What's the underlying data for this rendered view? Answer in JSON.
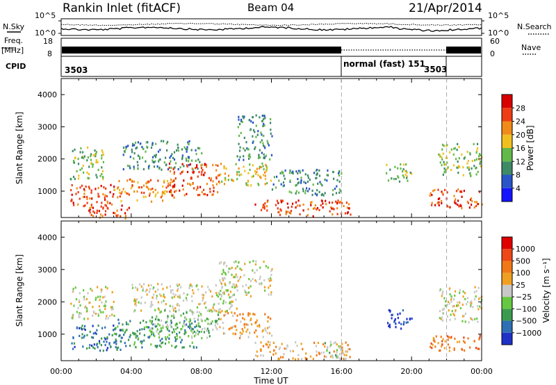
{
  "header": {
    "station": "Rankin Inlet (fitACF)",
    "beam": "Beam 04",
    "date": "21/Apr/2014"
  },
  "status_panels": {
    "nsky_label": "N.Sky",
    "nsearch_label": "N.Search",
    "noise_ticks": [
      "10^5",
      "10^0"
    ],
    "freq_label": "Freq.",
    "freq_unit": "[MHz]",
    "freq_ticks": [
      "18",
      "8"
    ],
    "nave_label": "Nave",
    "nave_ticks": [
      "60",
      "0"
    ],
    "cpid_label": "CPID",
    "cpid_segments": [
      {
        "start_h": 0,
        "end_h": 16,
        "label": "3503"
      },
      {
        "start_h": 16,
        "end_h": 22,
        "label": "normal (fast) 151"
      },
      {
        "start_h": 22,
        "end_h": 24,
        "label": "3503"
      }
    ]
  },
  "chart_data": [
    {
      "type": "heatmap",
      "title": "",
      "xlabel": "Time UT",
      "ylabel": "Slant Range [km]",
      "xlim_hours": [
        0,
        24
      ],
      "ylim_km": [
        180,
        4500
      ],
      "x_ticks": [
        "00:00",
        "04:00",
        "08:00",
        "12:00",
        "16:00",
        "20:00",
        "00:00"
      ],
      "y_ticks": [
        "1000",
        "2000",
        "3000",
        "4000"
      ],
      "colorbar": {
        "label": "Power [dB]",
        "ticks": [
          "4",
          "8",
          "12",
          "16",
          "20",
          "24",
          "28"
        ],
        "colors": [
          "#1414ff",
          "#2a55c8",
          "#3e8a66",
          "#62b84a",
          "#f0c020",
          "#f08a18",
          "#ee3c14",
          "#d80000"
        ]
      },
      "regions": [
        {
          "t0": 0.5,
          "t1": 3.0,
          "r0": 500,
          "r1": 1250,
          "level": 6
        },
        {
          "t0": 0.5,
          "t1": 2.5,
          "r0": 1400,
          "r1": 2400,
          "level": 3
        },
        {
          "t0": 1.5,
          "t1": 4.0,
          "r0": 180,
          "r1": 600,
          "level": 6
        },
        {
          "t0": 3.0,
          "t1": 6.5,
          "r0": 700,
          "r1": 1400,
          "level": 5
        },
        {
          "t0": 3.5,
          "t1": 8.0,
          "r0": 1700,
          "r1": 2600,
          "level": 2
        },
        {
          "t0": 6.0,
          "t1": 9.0,
          "r0": 900,
          "r1": 1900,
          "level": 6
        },
        {
          "t0": 9.0,
          "t1": 12.0,
          "r0": 1200,
          "r1": 1900,
          "level": 4
        },
        {
          "t0": 10.0,
          "t1": 12.0,
          "r0": 2000,
          "r1": 3400,
          "level": 2
        },
        {
          "t0": 11.0,
          "t1": 16.5,
          "r0": 250,
          "r1": 750,
          "level": 6
        },
        {
          "t0": 12.0,
          "t1": 16.0,
          "r0": 900,
          "r1": 1700,
          "level": 2
        },
        {
          "t0": 18.5,
          "t1": 20.0,
          "r0": 1300,
          "r1": 1900,
          "level": 3
        },
        {
          "t0": 21.0,
          "t1": 24.0,
          "r0": 500,
          "r1": 1100,
          "level": 6
        },
        {
          "t0": 21.5,
          "t1": 24.0,
          "r0": 1500,
          "r1": 2500,
          "level": 3
        }
      ]
    },
    {
      "type": "heatmap",
      "title": "",
      "xlabel": "Time UT",
      "ylabel": "Slant Range [km]",
      "xlim_hours": [
        0,
        24
      ],
      "ylim_km": [
        180,
        4500
      ],
      "x_ticks": [
        "00:00",
        "04:00",
        "08:00",
        "12:00",
        "16:00",
        "20:00",
        "00:00"
      ],
      "y_ticks": [
        "1000",
        "2000",
        "3000",
        "4000"
      ],
      "colorbar": {
        "label": "Velocity [m s⁻¹]",
        "ticks": [
          "1000",
          "500",
          "100",
          "25",
          "−25",
          "−100",
          "−500",
          "−1000"
        ],
        "colors": [
          "#1e32c8",
          "#2f6fb4",
          "#3c9a50",
          "#66c840",
          "#c8c8c8",
          "#f0a020",
          "#f07818",
          "#ec4818",
          "#e00000"
        ]
      },
      "regions": [
        {
          "t0": 0.5,
          "t1": 3.5,
          "r0": 500,
          "r1": 1300,
          "level": 1
        },
        {
          "t0": 0.5,
          "t1": 3.0,
          "r0": 1500,
          "r1": 2500,
          "level": 4
        },
        {
          "t0": 3.0,
          "t1": 8.0,
          "r0": 600,
          "r1": 1500,
          "level": 2
        },
        {
          "t0": 4.0,
          "t1": 10.0,
          "r0": 1700,
          "r1": 2600,
          "level": 4
        },
        {
          "t0": 5.0,
          "t1": 9.0,
          "r0": 900,
          "r1": 1800,
          "level": 3
        },
        {
          "t0": 9.0,
          "t1": 12.0,
          "r0": 2200,
          "r1": 3300,
          "level": 4
        },
        {
          "t0": 9.0,
          "t1": 12.0,
          "r0": 900,
          "r1": 1700,
          "level": 5
        },
        {
          "t0": 11.0,
          "t1": 16.5,
          "r0": 250,
          "r1": 800,
          "level": 5
        },
        {
          "t0": 15.0,
          "t1": 16.0,
          "r0": 300,
          "r1": 800,
          "level": 3
        },
        {
          "t0": 18.5,
          "t1": 20.0,
          "r0": 1200,
          "r1": 1800,
          "level": 0
        },
        {
          "t0": 21.5,
          "t1": 24.0,
          "r0": 1400,
          "r1": 2500,
          "level": 4
        },
        {
          "t0": 21.0,
          "t1": 24.0,
          "r0": 500,
          "r1": 1000,
          "level": 6
        }
      ]
    }
  ]
}
